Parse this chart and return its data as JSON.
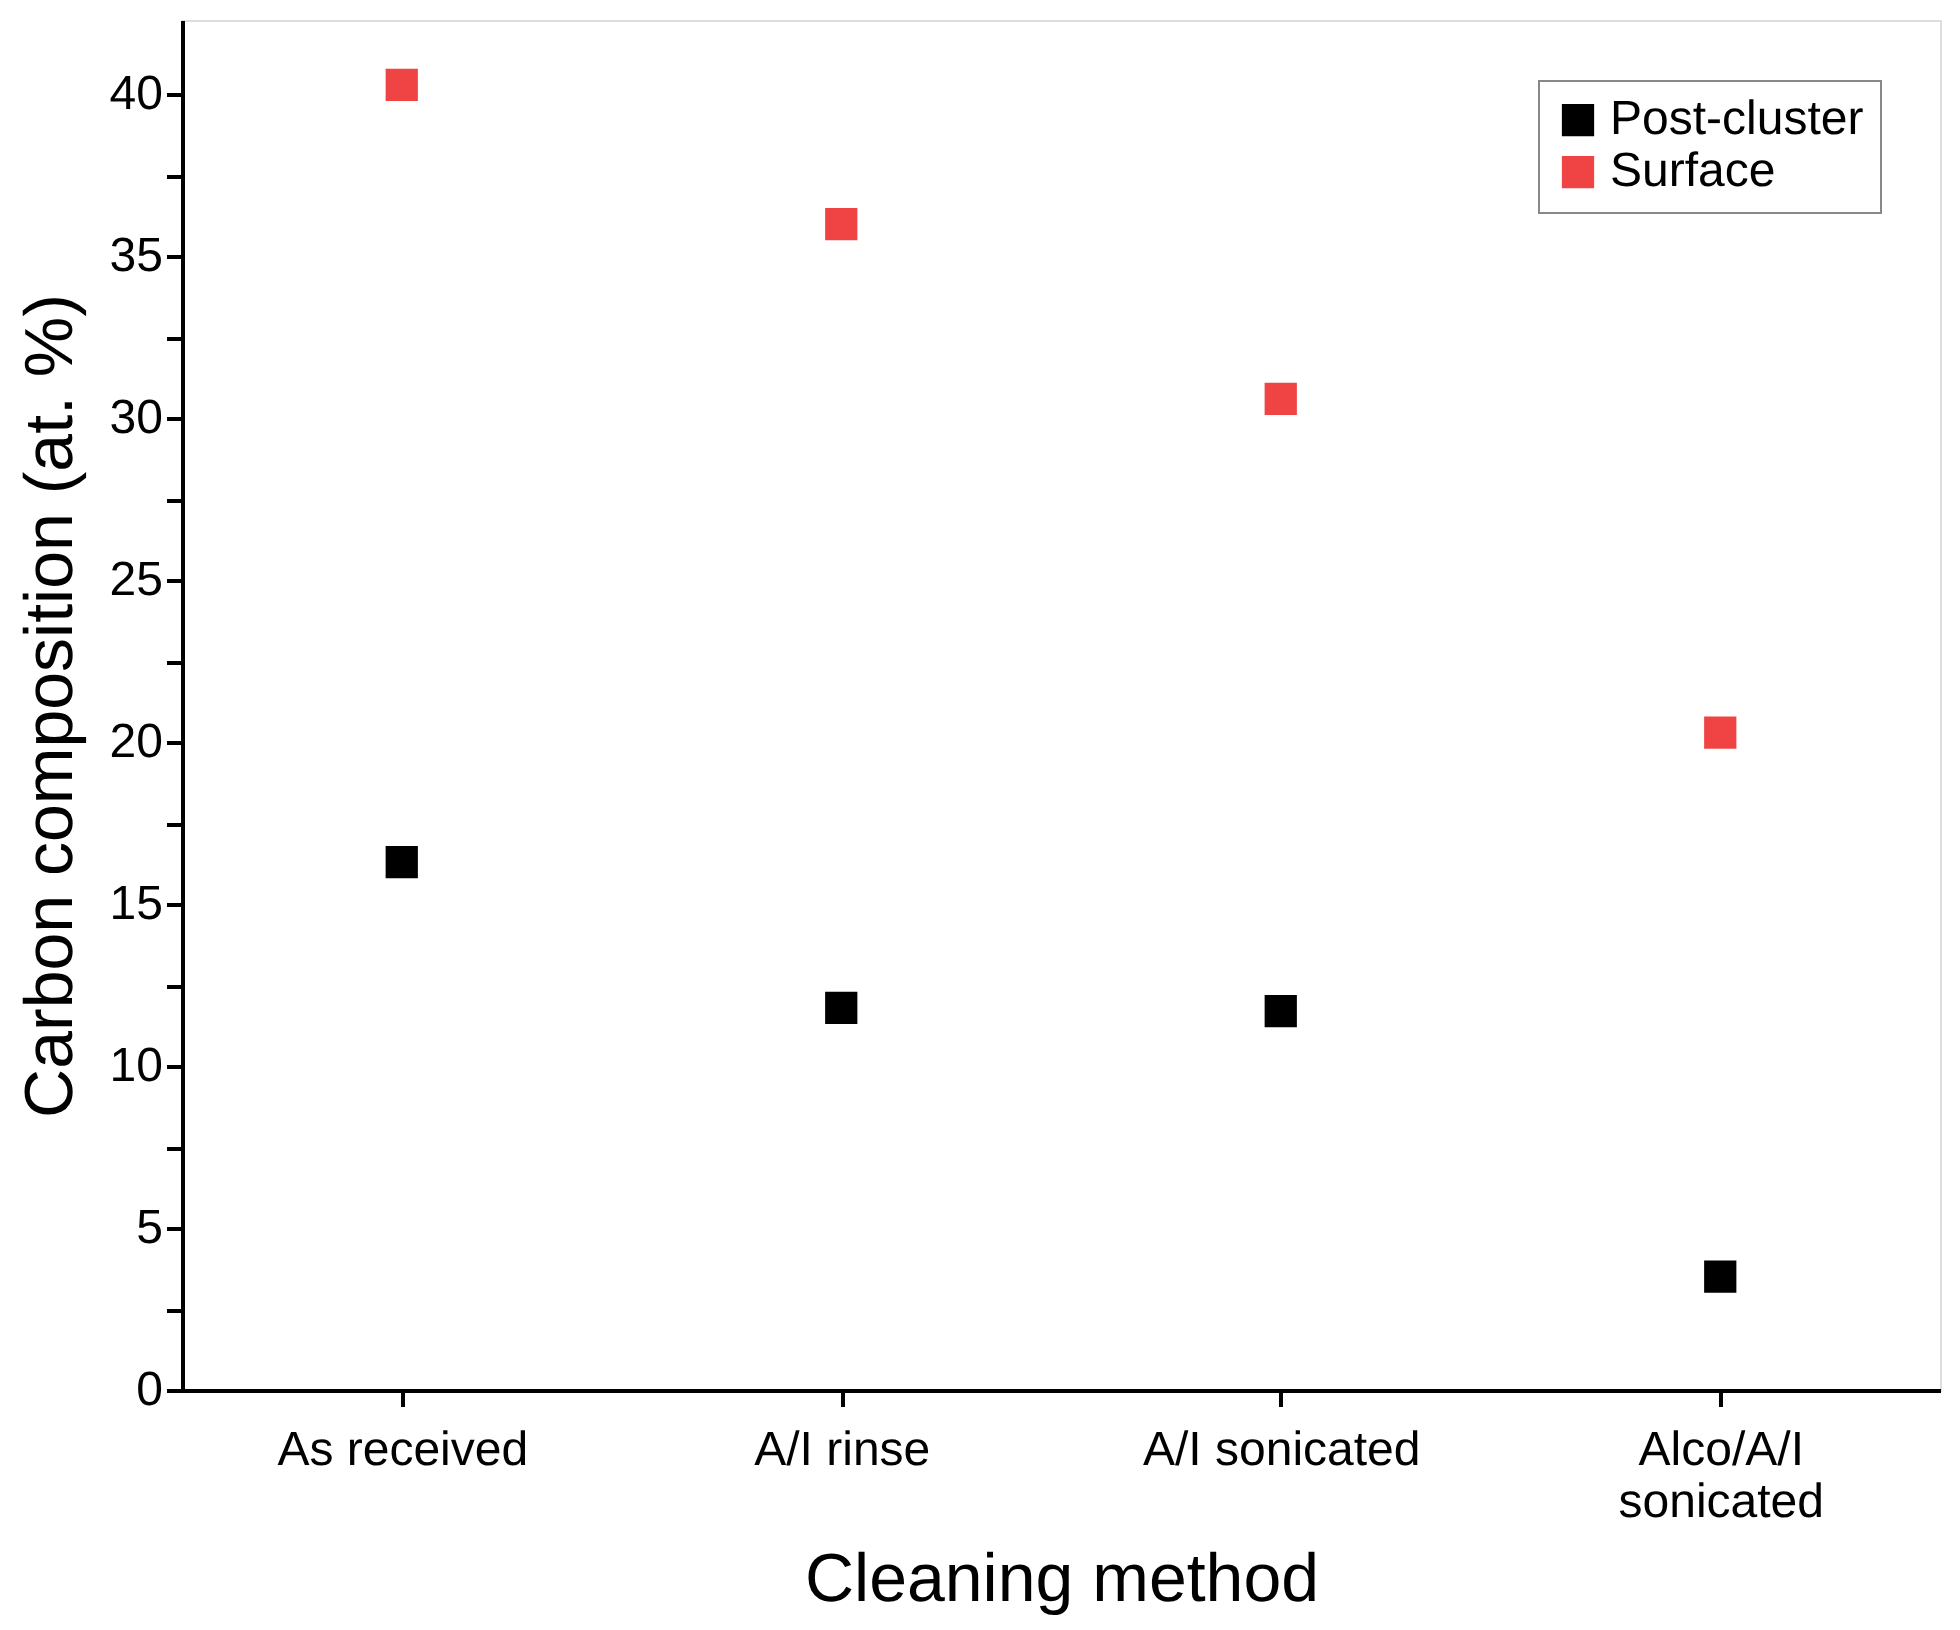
{
  "chart_data": {
    "type": "scatter",
    "xlabel": "Cleaning method",
    "ylabel": "Carbon composition (at. %)",
    "categories": [
      "As received",
      "A/I rinse",
      "A/I sonicated",
      "Alco/A/I sonicated"
    ],
    "series": [
      {
        "name": "Post-cluster",
        "color": "#000000",
        "values": [
          16.3,
          11.8,
          11.7,
          3.5
        ]
      },
      {
        "name": "Surface",
        "color": "#f04444",
        "values": [
          40.3,
          36.0,
          30.6,
          20.3
        ]
      }
    ],
    "ylim": [
      0,
      42.3
    ],
    "yticks": [
      0,
      {
        "value": 2.5,
        "label": null
      },
      5,
      {
        "value": 7.5,
        "label": null
      },
      10,
      {
        "value": 12.5,
        "label": null
      },
      15,
      {
        "value": 17.5,
        "label": null
      },
      20,
      {
        "value": 22.5,
        "label": null
      },
      25,
      {
        "value": 27.5,
        "label": null
      },
      30,
      {
        "value": 32.5,
        "label": null
      },
      35,
      {
        "value": 37.5,
        "label": null
      },
      40
    ],
    "marker": "square",
    "legend": "top right",
    "grid": false
  }
}
